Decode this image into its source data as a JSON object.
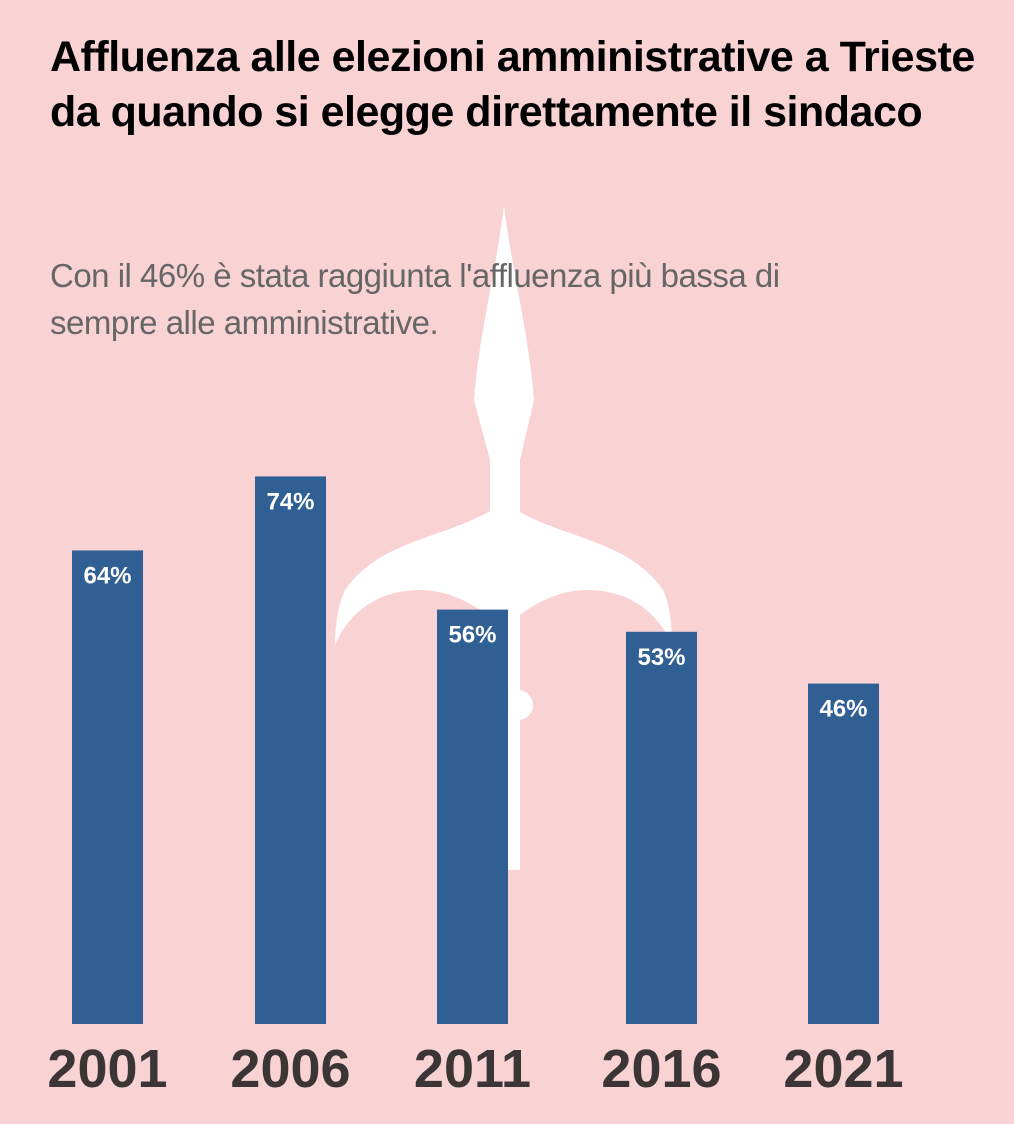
{
  "chart_data": {
    "type": "bar",
    "title": "Affluenza alle elezioni amministrative a Trieste da quando si elegge direttamente il sindaco",
    "subtitle": "Con il 46% è stata raggiunta l'affluenza più bassa di sempre alle amministrative.",
    "categories": [
      "2001",
      "2006",
      "2011",
      "2016",
      "2021"
    ],
    "values": [
      64,
      74,
      56,
      53,
      46
    ],
    "data_labels": [
      "64%",
      "74%",
      "56%",
      "53%",
      "46%"
    ],
    "xlabel": "",
    "ylabel": "",
    "ylim": [
      0,
      100
    ],
    "grid": false,
    "colors": {
      "bar": "#305f94",
      "background": "#f9d3d4",
      "label": "#ffffff",
      "tick": "#3b3536",
      "emblem": "#ffffff"
    },
    "background_emblem": "halberd-of-trieste"
  }
}
